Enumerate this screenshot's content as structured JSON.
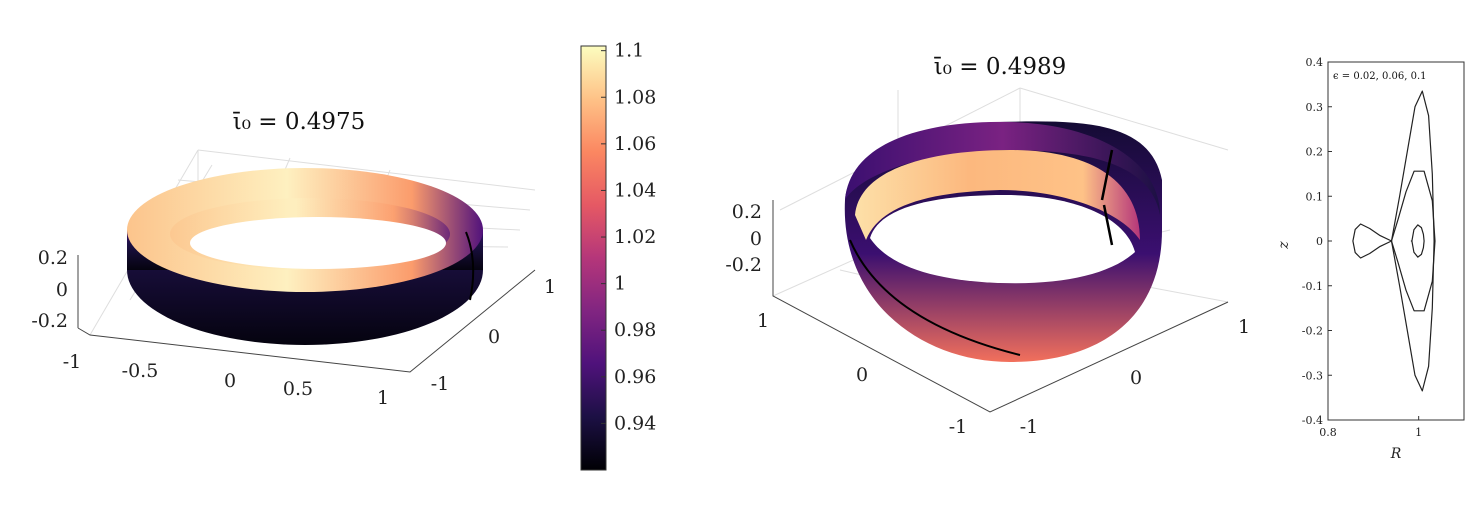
{
  "chart_data": [
    {
      "type": "surface",
      "title": "ῑ₀ = 0.4975",
      "x_ticks": [
        "-1",
        "-0.5",
        "0",
        "0.5",
        "1"
      ],
      "y_ticks": [
        "-1",
        "0",
        "1"
      ],
      "z_ticks": [
        "0.2",
        "0",
        "-0.2"
      ],
      "xlim": [
        -1,
        1
      ],
      "ylim": [
        -1,
        1
      ],
      "zlim": [
        -0.3,
        0.3
      ],
      "surface": "twisted ring (elliptical cross-section), colored by field value"
    },
    {
      "type": "colorbar",
      "ticks": [
        "1.1",
        "1.08",
        "1.06",
        "1.04",
        "1.02",
        "1",
        "0.98",
        "0.96",
        "0.94"
      ],
      "tick_values": [
        1.1,
        1.08,
        1.06,
        1.04,
        1.02,
        1.0,
        0.98,
        0.96,
        0.94
      ],
      "range": [
        0.92,
        1.102
      ],
      "colormap": "magma",
      "colors": [
        "#000004",
        "#1c1044",
        "#4f127b",
        "#812581",
        "#b5367a",
        "#e55964",
        "#fb8761",
        "#fec287",
        "#fcfdbf"
      ]
    },
    {
      "type": "surface",
      "title": "ῑ₀ = 0.4989",
      "x_ticks": [
        "-1",
        "0",
        "1"
      ],
      "y_ticks": [
        "-1",
        "0",
        "1"
      ],
      "z_ticks": [
        "0.2",
        "0",
        "-0.2"
      ],
      "xlim": [
        -1,
        1
      ],
      "ylim": [
        -1,
        1
      ],
      "zlim": [
        -0.3,
        0.3
      ],
      "surface": "strongly twisted ring (triangular cross-section), colored by field value"
    },
    {
      "type": "line",
      "annotation": "ϵ = 0.02, 0.06, 0.1",
      "xlabel": "R",
      "ylabel": "z",
      "xlim": [
        0.8,
        1.1
      ],
      "ylim": [
        -0.4,
        0.4
      ],
      "x_ticks": [
        "0.8",
        "1"
      ],
      "x_tick_values": [
        0.8,
        1.0
      ],
      "y_ticks": [
        "0.4",
        "0.3",
        "0.2",
        "0.1",
        "0",
        "-0.1",
        "-0.2",
        "-0.3",
        "-0.4"
      ],
      "y_tick_values": [
        0.4,
        0.3,
        0.2,
        0.1,
        0,
        -0.1,
        -0.2,
        -0.3,
        -0.4
      ],
      "series": [
        {
          "epsilon": 0.02,
          "R": [
            0.985,
            0.9895,
            0.998,
            1.006,
            1.0105,
            1.012,
            1.0105,
            1.006,
            0.998,
            0.9895,
            0.985,
            0.984,
            0.985
          ],
          "z": [
            0.0,
            0.025,
            0.036,
            0.03,
            0.015,
            0.0,
            -0.015,
            -0.03,
            -0.036,
            -0.025,
            0.0,
            0.0,
            0.0
          ]
        },
        {
          "epsilon": 0.06,
          "R": [
            0.94,
            0.955,
            0.972,
            0.99,
            1.012,
            1.03,
            1.036,
            1.03,
            1.012,
            0.99,
            0.972,
            0.955,
            0.94
          ],
          "z": [
            0.0,
            0.05,
            0.11,
            0.156,
            0.156,
            0.09,
            0.0,
            -0.09,
            -0.156,
            -0.156,
            -0.11,
            -0.05,
            0.0
          ]
        },
        {
          "epsilon": 0.1,
          "R": [
            0.94,
            0.915,
            0.892,
            0.872,
            0.86,
            0.855,
            0.86,
            0.872,
            0.892,
            0.915,
            0.94,
            0.958,
            0.975,
            0.992,
            1.008,
            1.022,
            1.03,
            1.034,
            1.03,
            1.022,
            1.008,
            0.992,
            0.975,
            0.958,
            0.94
          ],
          "z": [
            0.0,
            0.012,
            0.028,
            0.038,
            0.026,
            0.0,
            -0.026,
            -0.038,
            -0.028,
            -0.012,
            0.0,
            0.1,
            0.2,
            0.3,
            0.335,
            0.28,
            0.15,
            0.0,
            -0.15,
            -0.28,
            -0.335,
            -0.3,
            -0.2,
            -0.1,
            0.0
          ]
        }
      ]
    }
  ]
}
